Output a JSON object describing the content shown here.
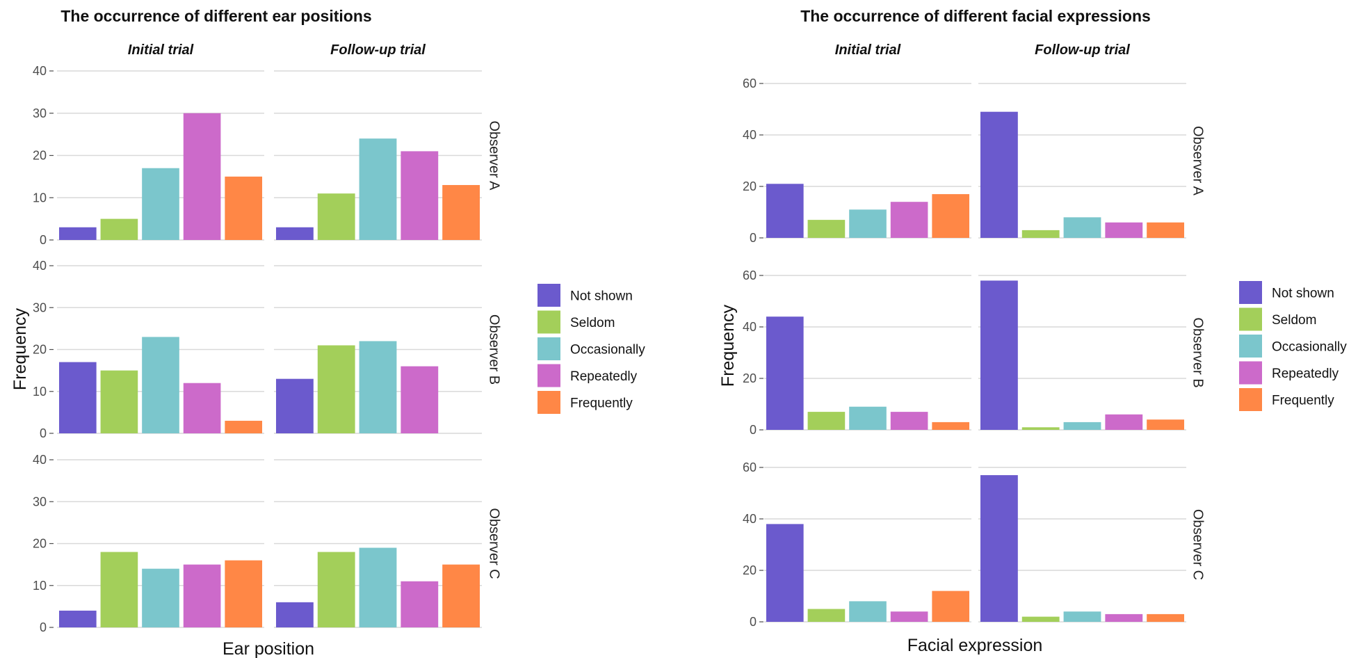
{
  "chart_data": [
    {
      "type": "bar",
      "title": "The occurrence of different ear positions",
      "xlabel": "Ear position",
      "ylabel": "Frequency",
      "ylim": [
        0,
        40
      ],
      "yticks": [
        0,
        10,
        20,
        30,
        40
      ],
      "grid": true,
      "legend_placement": "right",
      "categories": [
        "Not shown",
        "Seldom",
        "Occasionally",
        "Repeatedly",
        "Frequently"
      ],
      "columns": [
        "Initial trial",
        "Follow-up trial"
      ],
      "rows": [
        "Observer A",
        "Observer B",
        "Observer C"
      ],
      "values": [
        [
          [
            3,
            5,
            17,
            30,
            15
          ],
          [
            3,
            11,
            24,
            21,
            13
          ]
        ],
        [
          [
            17,
            15,
            23,
            12,
            3
          ],
          [
            13,
            21,
            22,
            16,
            0
          ]
        ],
        [
          [
            4,
            18,
            14,
            15,
            16
          ],
          [
            6,
            18,
            19,
            11,
            15
          ]
        ]
      ]
    },
    {
      "type": "bar",
      "title": "The occurrence of different facial expressions",
      "xlabel": "Facial expression",
      "ylabel": "Frequency",
      "ylim": [
        0,
        60
      ],
      "yticks": [
        0,
        20,
        40,
        60
      ],
      "grid": true,
      "legend_placement": "right",
      "categories": [
        "Not shown",
        "Seldom",
        "Occasionally",
        "Repeatedly",
        "Frequently"
      ],
      "columns": [
        "Initial trial",
        "Follow-up trial"
      ],
      "rows": [
        "Observer A",
        "Observer B",
        "Observer C"
      ],
      "values": [
        [
          [
            21,
            7,
            11,
            14,
            17
          ],
          [
            49,
            3,
            8,
            6,
            6
          ]
        ],
        [
          [
            44,
            7,
            9,
            7,
            3
          ],
          [
            58,
            1,
            3,
            6,
            4
          ]
        ],
        [
          [
            38,
            5,
            8,
            4,
            12
          ],
          [
            57,
            2,
            4,
            3,
            3
          ]
        ]
      ]
    }
  ],
  "colors": {
    "Not shown": "#6B5ACD",
    "Seldom": "#A3CF5A",
    "Occasionally": "#7BC6CC",
    "Repeatedly": "#CC6ACA",
    "Frequently": "#FF8746"
  }
}
